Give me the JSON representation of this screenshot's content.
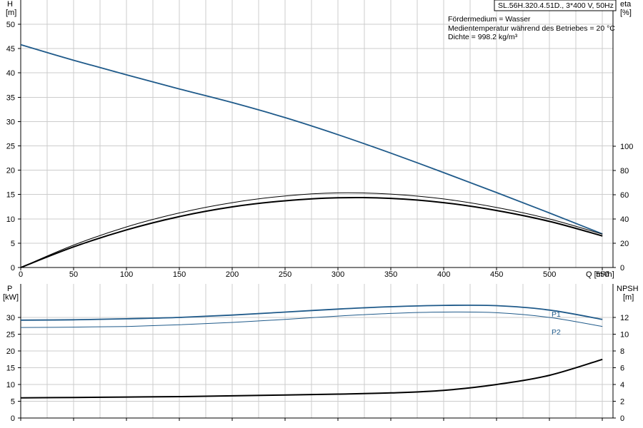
{
  "title": "SL.56H.320.4.51D., 3*400 V, 50Hz",
  "info": [
    "Fördermedium = Wasser",
    "Medientemperatur während des Betriebes = 20 °C",
    "Dichte = 998.2 kg/m³"
  ],
  "colors": {
    "blue": "#1f5a8a",
    "black": "#000000",
    "grid": "#cccccc"
  },
  "chart_data": [
    {
      "type": "line",
      "xlabel": "Q [m³/h]",
      "xlim": [
        0,
        560
      ],
      "x_ticks": [
        0,
        50,
        100,
        150,
        200,
        250,
        300,
        350,
        400,
        450,
        500,
        550
      ],
      "y_left": {
        "label_top": "H",
        "label_unit": "[m]",
        "lim": [
          0,
          50
        ],
        "ticks": [
          0,
          5,
          10,
          15,
          20,
          25,
          30,
          35,
          40,
          45,
          50
        ]
      },
      "y_right": {
        "label_top": "eta",
        "label_unit": "[%]",
        "lim": [
          0,
          147
        ],
        "ticks": [
          0,
          20,
          40,
          60,
          80,
          100
        ]
      },
      "grid": true,
      "series": [
        {
          "axis": "left",
          "color": "#1f5a8a",
          "width": 1.8,
          "points": [
            [
              0,
              45.8
            ],
            [
              50,
              42.6
            ],
            [
              100,
              39.6
            ],
            [
              150,
              36.7
            ],
            [
              200,
              33.9
            ],
            [
              250,
              30.8
            ],
            [
              300,
              27.3
            ],
            [
              350,
              23.5
            ],
            [
              400,
              19.5
            ],
            [
              450,
              15.4
            ],
            [
              500,
              11.2
            ],
            [
              550,
              6.9
            ]
          ]
        },
        {
          "axis": "right",
          "color": "#000000",
          "width": 1.0,
          "points": [
            [
              0,
              0
            ],
            [
              50,
              18.5
            ],
            [
              100,
              33.5
            ],
            [
              150,
              45
            ],
            [
              200,
              53.5
            ],
            [
              250,
              59
            ],
            [
              300,
              61.5
            ],
            [
              350,
              60.5
            ],
            [
              400,
              56.5
            ],
            [
              450,
              49.5
            ],
            [
              500,
              40
            ],
            [
              550,
              27.5
            ]
          ]
        },
        {
          "axis": "right",
          "color": "#000000",
          "width": 2.0,
          "points": [
            [
              0,
              0
            ],
            [
              50,
              17
            ],
            [
              100,
              31
            ],
            [
              150,
              42
            ],
            [
              200,
              50
            ],
            [
              250,
              55
            ],
            [
              300,
              57.5
            ],
            [
              350,
              57
            ],
            [
              400,
              53.5
            ],
            [
              450,
              47
            ],
            [
              500,
              38
            ],
            [
              550,
              26
            ]
          ]
        }
      ]
    },
    {
      "type": "line",
      "xlim": [
        0,
        560
      ],
      "x_ticks": [
        0,
        50,
        100,
        150,
        200,
        250,
        300,
        350,
        400,
        450,
        500,
        550
      ],
      "y_left": {
        "label_top": "P",
        "label_unit": "[kW]",
        "lim": [
          0,
          40
        ],
        "ticks": [
          0,
          5,
          10,
          15,
          20,
          25,
          30
        ]
      },
      "y_right": {
        "label_top": "NPSH",
        "label_unit": "[m]",
        "lim": [
          0,
          16
        ],
        "ticks": [
          0,
          2,
          4,
          6,
          8,
          10,
          12
        ]
      },
      "grid": true,
      "series": [
        {
          "name": "P1",
          "axis": "left",
          "color": "#1f5a8a",
          "width": 1.8,
          "points": [
            [
              0,
              29.2
            ],
            [
              50,
              29.3
            ],
            [
              100,
              29.6
            ],
            [
              150,
              30
            ],
            [
              200,
              30.7
            ],
            [
              250,
              31.6
            ],
            [
              300,
              32.5
            ],
            [
              350,
              33.2
            ],
            [
              400,
              33.6
            ],
            [
              450,
              33.5
            ],
            [
              500,
              32.2
            ],
            [
              550,
              29.4
            ]
          ]
        },
        {
          "name": "P2",
          "axis": "left",
          "color": "#1f5a8a",
          "width": 1.0,
          "points": [
            [
              0,
              27
            ],
            [
              50,
              27.1
            ],
            [
              100,
              27.3
            ],
            [
              150,
              27.8
            ],
            [
              200,
              28.5
            ],
            [
              250,
              29.4
            ],
            [
              300,
              30.4
            ],
            [
              350,
              31.2
            ],
            [
              400,
              31.6
            ],
            [
              450,
              31.4
            ],
            [
              500,
              30
            ],
            [
              550,
              27.3
            ]
          ]
        },
        {
          "axis": "right",
          "color": "#000000",
          "width": 2.0,
          "points": [
            [
              0,
              2.4
            ],
            [
              50,
              2.45
            ],
            [
              100,
              2.5
            ],
            [
              150,
              2.55
            ],
            [
              200,
              2.65
            ],
            [
              250,
              2.75
            ],
            [
              300,
              2.85
            ],
            [
              350,
              3.0
            ],
            [
              400,
              3.3
            ],
            [
              450,
              4.0
            ],
            [
              500,
              5.1
            ],
            [
              550,
              7.0
            ]
          ]
        }
      ]
    }
  ]
}
